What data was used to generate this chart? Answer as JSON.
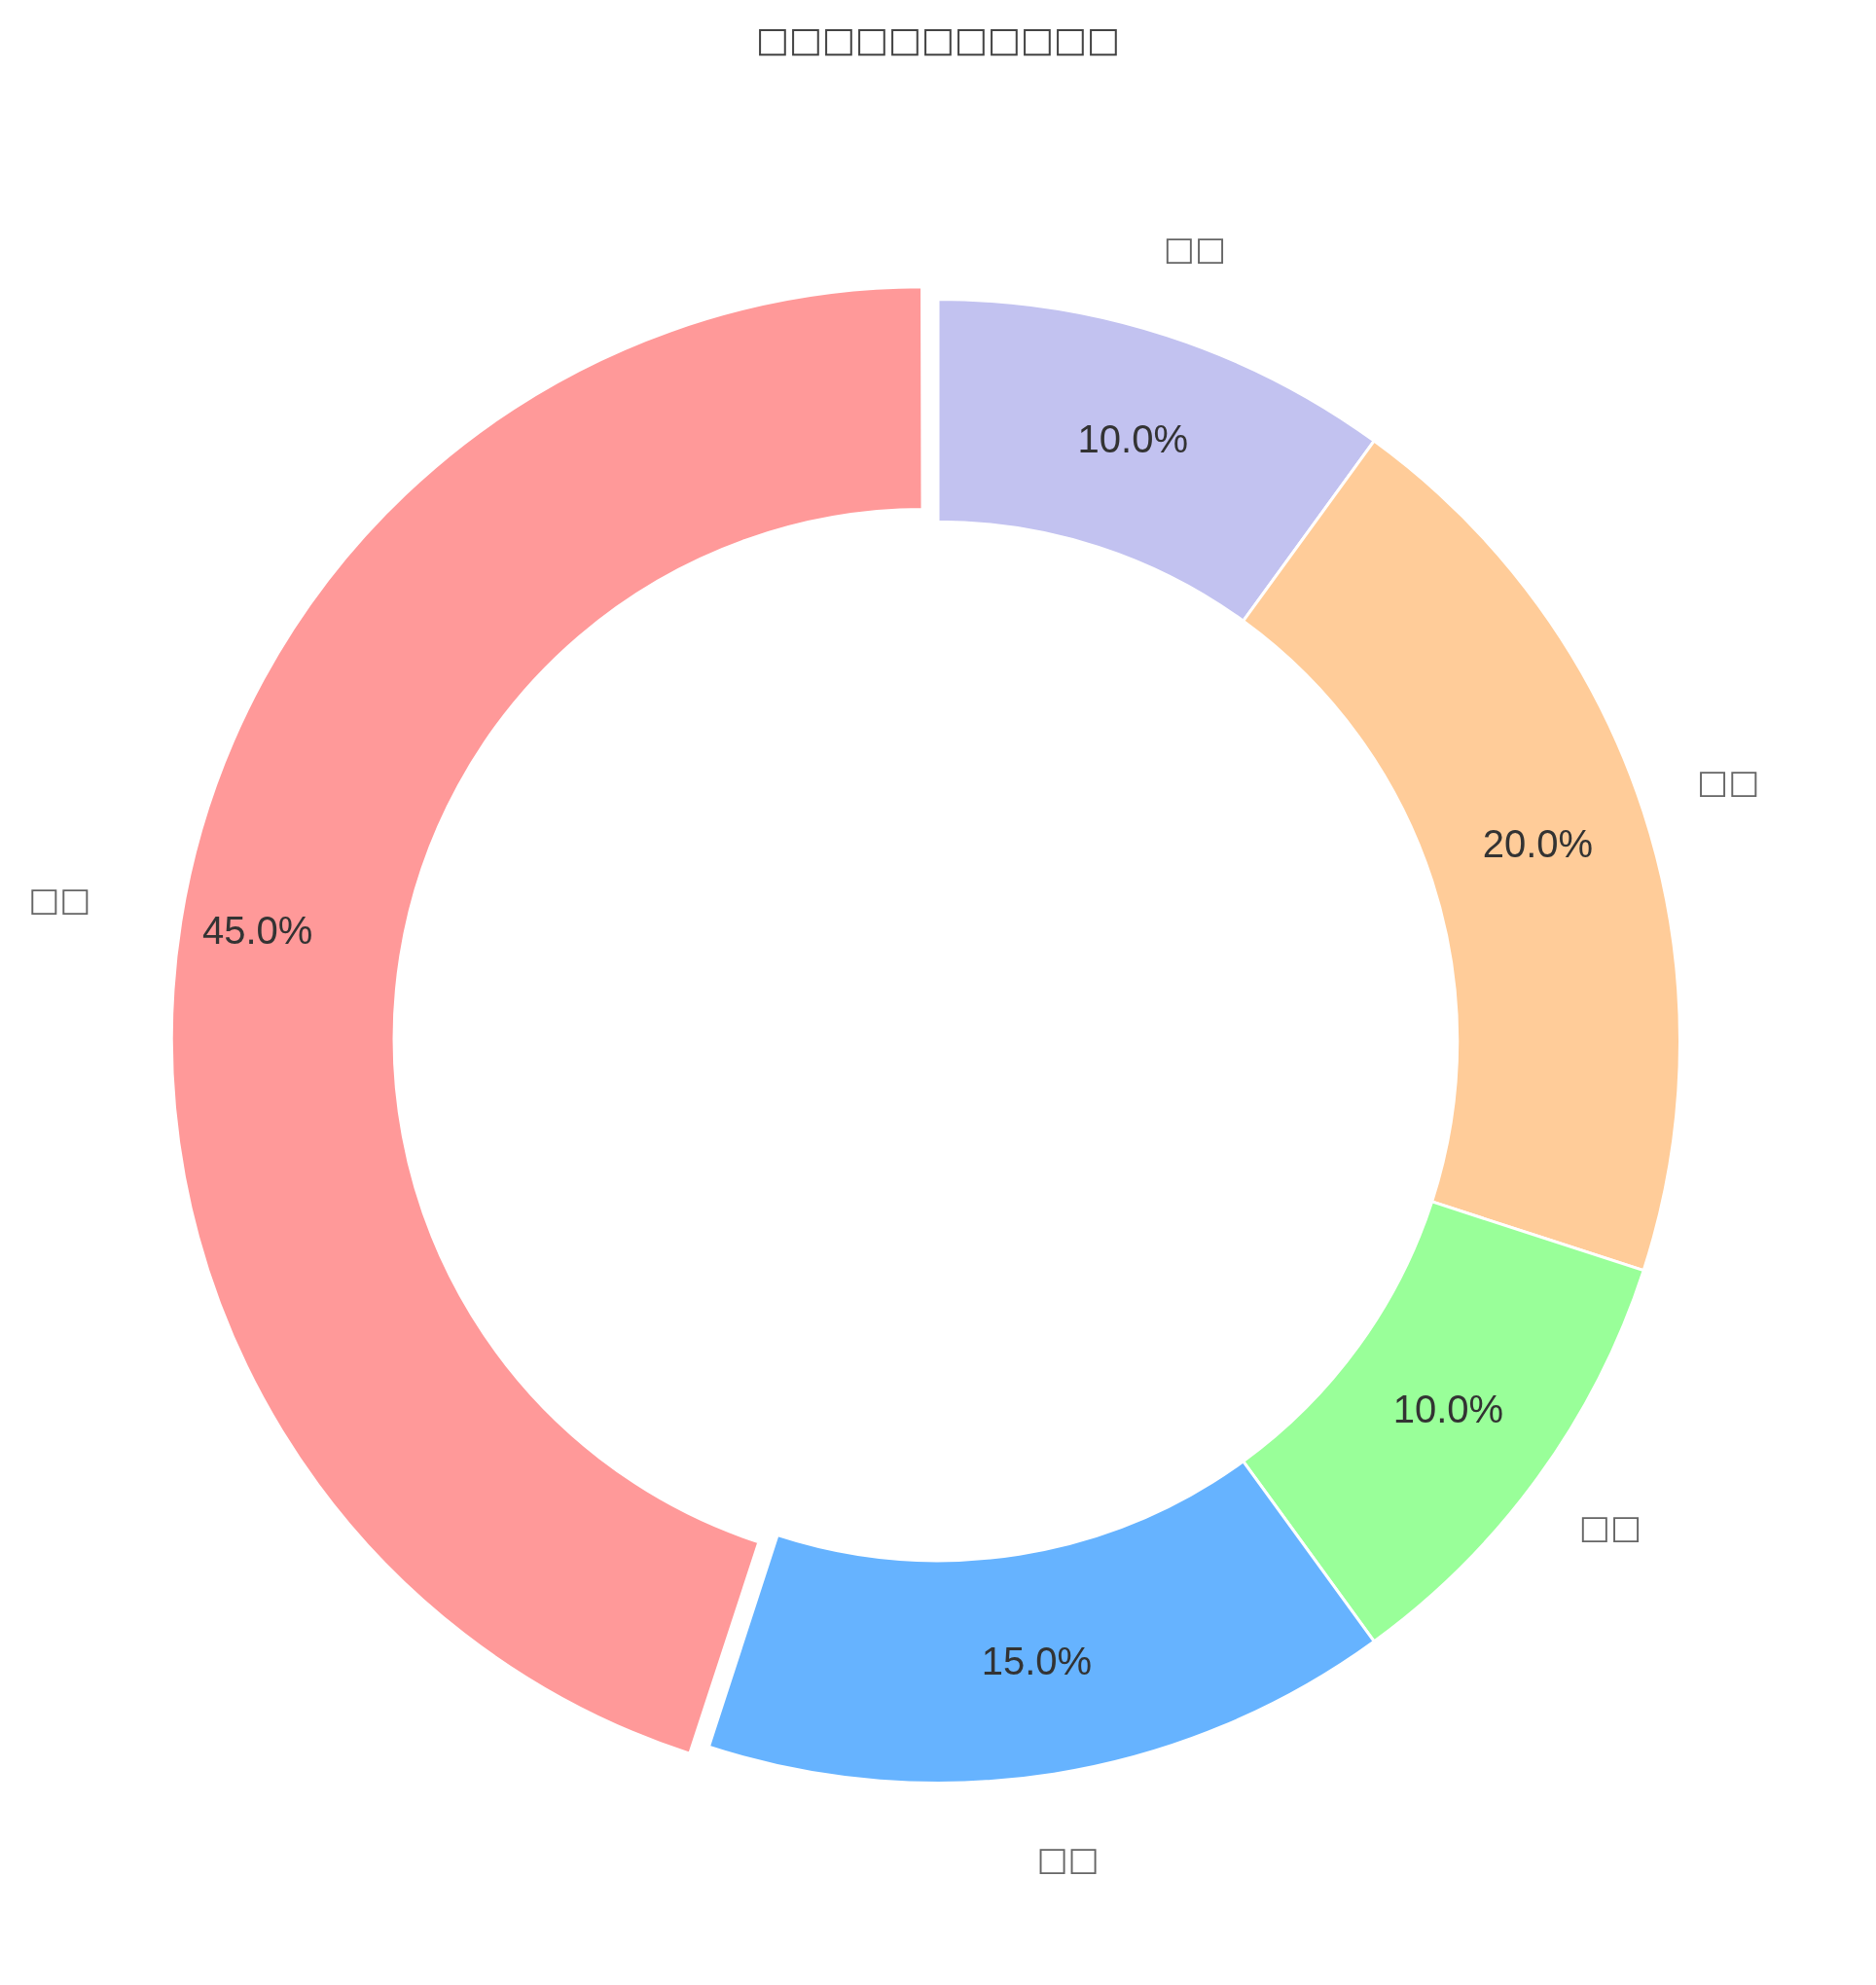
{
  "chart_data": {
    "type": "donut",
    "title": "□□□□□□□□□□□",
    "categories": [
      "□□",
      "□□",
      "□□",
      "□□",
      "□□"
    ],
    "values": [
      45,
      15,
      10,
      20,
      10
    ],
    "colors": [
      "#ff9999",
      "#66b3ff",
      "#99ff99",
      "#ffcc99",
      "#c2c2f0"
    ],
    "value_labels": [
      "45.0%",
      "15.0%",
      "10.0%",
      "20.0%",
      "10.0%"
    ],
    "legend": false
  }
}
